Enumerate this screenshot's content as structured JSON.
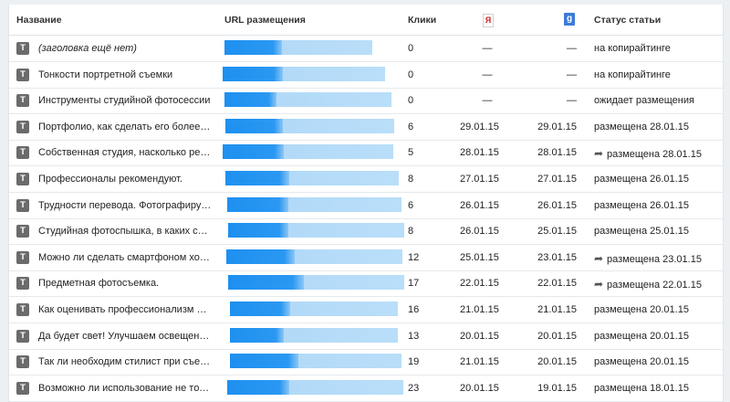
{
  "header": {
    "col_title": "Название",
    "col_url": "URL размещения",
    "col_clicks": "Клики",
    "yandex_icon": "Я",
    "google_icon": "g",
    "col_status": "Статус статьи"
  },
  "rows": [
    {
      "title": "(заголовка ещё нет)",
      "italic": true,
      "bar_fill": 0.39,
      "clicks": "0",
      "yandex": "—",
      "google": "—",
      "status": "на копирайтинге",
      "shared": false
    },
    {
      "title": "Тонкости портретной съемки",
      "italic": false,
      "bar_fill": 0.37,
      "clicks": "0",
      "yandex": "—",
      "google": "—",
      "status": "на копирайтинге",
      "shared": false
    },
    {
      "title": "Инструменты студийной фотосессии",
      "italic": false,
      "bar_fill": 0.31,
      "clicks": "0",
      "yandex": "—",
      "google": "—",
      "status": "ожидает размещения",
      "shared": false
    },
    {
      "title": "Портфолио, как сделать его более …",
      "italic": false,
      "bar_fill": 0.34,
      "clicks": "6",
      "yandex": "29.01.15",
      "google": "29.01.15",
      "status": "размещена 28.01.15",
      "shared": false
    },
    {
      "title": "Собственная студия, насколько рен…",
      "italic": false,
      "bar_fill": 0.36,
      "clicks": "5",
      "yandex": "28.01.15",
      "google": "28.01.15",
      "status": "размещена 28.01.15",
      "shared": true
    },
    {
      "title": "Профессионалы рекомендуют.",
      "italic": false,
      "bar_fill": 0.37,
      "clicks": "8",
      "yandex": "27.01.15",
      "google": "27.01.15",
      "status": "размещена 26.01.15",
      "shared": false
    },
    {
      "title": "Трудности перевода. Фотографируе…",
      "italic": false,
      "bar_fill": 0.35,
      "clicks": "6",
      "yandex": "26.01.15",
      "google": "26.01.15",
      "status": "размещена 26.01.15",
      "shared": false
    },
    {
      "title": "Студийная фотоспышка, в каких сл…",
      "italic": false,
      "bar_fill": 0.34,
      "clicks": "8",
      "yandex": "26.01.15",
      "google": "25.01.15",
      "status": "размещена 25.01.15",
      "shared": false
    },
    {
      "title": "Можно ли сделать смартфоном хор…",
      "italic": false,
      "bar_fill": 0.39,
      "clicks": "12",
      "yandex": "25.01.15",
      "google": "23.01.15",
      "status": "размещена 23.01.15",
      "shared": true
    },
    {
      "title": "Предметная фотосъемка.",
      "italic": false,
      "bar_fill": 0.43,
      "clicks": "17",
      "yandex": "22.01.15",
      "google": "22.01.15",
      "status": "размещена 22.01.15",
      "shared": true
    },
    {
      "title": "Как оценивать профессионализм ф…",
      "italic": false,
      "bar_fill": 0.36,
      "clicks": "16",
      "yandex": "21.01.15",
      "google": "21.01.15",
      "status": "размещена 20.01.15",
      "shared": false
    },
    {
      "title": "Да будет свет! Улучшаем освещенн…",
      "italic": false,
      "bar_fill": 0.32,
      "clicks": "13",
      "yandex": "20.01.15",
      "google": "20.01.15",
      "status": "размещена 20.01.15",
      "shared": false
    },
    {
      "title": "Так ли необходим стилист при съе…",
      "italic": false,
      "bar_fill": 0.4,
      "clicks": "19",
      "yandex": "21.01.15",
      "google": "20.01.15",
      "status": "размещена 20.01.15",
      "shared": false
    },
    {
      "title": "Возможно ли использование не тол…",
      "italic": false,
      "bar_fill": 0.35,
      "clicks": "23",
      "yandex": "20.01.15",
      "google": "19.01.15",
      "status": "размещена 18.01.15",
      "shared": false
    }
  ]
}
